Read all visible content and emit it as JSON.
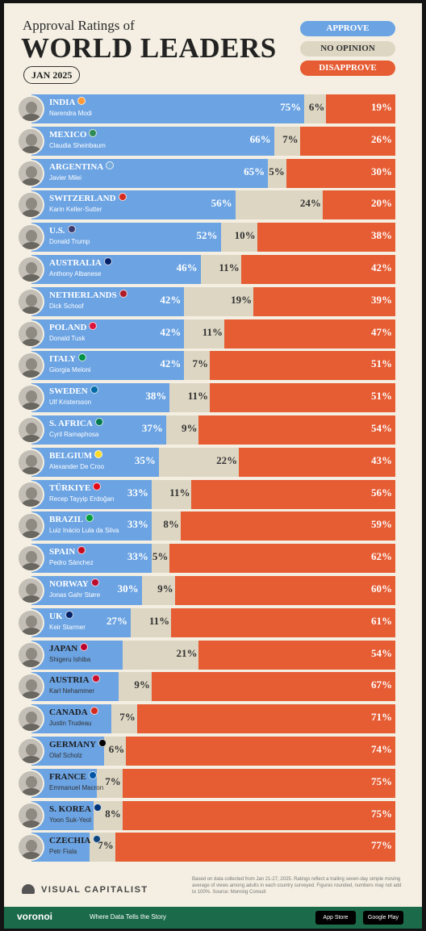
{
  "header": {
    "subtitle": "Approval Ratings of",
    "title": "WORLD LEADERS",
    "date": "JAN 2025"
  },
  "legend": {
    "approve": "APPROVE",
    "no_opinion": "NO OPINION",
    "disapprove": "DISAPPROVE"
  },
  "colors": {
    "approve": "#6ba3e3",
    "no_opinion": "#ddd6c3",
    "disapprove": "#e65c33",
    "background": "#f4efe2",
    "footer": "#1b6a4a"
  },
  "chart_data": {
    "type": "bar",
    "stacked": true,
    "orientation": "horizontal",
    "title": "WORLD LEADERS",
    "subtitle": "Approval Ratings of",
    "categories": [
      "INDIA",
      "MEXICO",
      "ARGENTINA",
      "SWITZERLAND",
      "U.S.",
      "AUSTRALIA",
      "NETHERLANDS",
      "POLAND",
      "ITALY",
      "SWEDEN",
      "S. AFRICA",
      "BELGIUM",
      "TÜRKIYE",
      "BRAZIL",
      "SPAIN",
      "NORWAY",
      "UK",
      "JAPAN",
      "AUSTRIA",
      "CANADA",
      "GERMANY",
      "FRANCE",
      "S. KOREA",
      "CZECHIA"
    ],
    "leaders": [
      "Narendra Modi",
      "Claudia Sheinbaum",
      "Javier Milei",
      "Karin Keller-Sutter",
      "Donald Trump",
      "Anthony Albanese",
      "Dick Schoof",
      "Donald Tusk",
      "Giorgia Meloni",
      "Ulf Kristersson",
      "Cyril Ramaphosa",
      "Alexander De Croo",
      "Recep Tayyip Erdoğan",
      "Luiz Inácio Lula da Silva",
      "Pedro Sánchez",
      "Jonas Gahr Støre",
      "Keir Starmer",
      "Shigeru Ishiba",
      "Karl Nehammer",
      "Justin Trudeau",
      "Olaf Scholz",
      "Emmanuel Macron",
      "Yoon Suk-Yeol",
      "Petr Fiala"
    ],
    "flag_colors": [
      "#ff9933",
      "#2e8b57",
      "#75aadb",
      "#d52b1e",
      "#3c3b6e",
      "#012169",
      "#ae1c28",
      "#dc143c",
      "#009246",
      "#006aa7",
      "#007a4d",
      "#fdda24",
      "#e30a17",
      "#009c3b",
      "#c60b1e",
      "#ba0c2f",
      "#012169",
      "#bc002d",
      "#c8102e",
      "#d52b1e",
      "#000000",
      "#0055a4",
      "#003478",
      "#11457e"
    ],
    "series": [
      {
        "name": "APPROVE",
        "values": [
          75,
          66,
          65,
          56,
          52,
          46,
          42,
          42,
          42,
          38,
          37,
          35,
          33,
          33,
          33,
          30,
          27,
          25,
          24,
          22,
          20,
          18,
          17,
          16
        ]
      },
      {
        "name": "NO OPINION",
        "values": [
          6,
          7,
          5,
          24,
          10,
          11,
          19,
          11,
          7,
          11,
          9,
          22,
          11,
          8,
          5,
          9,
          11,
          21,
          9,
          7,
          6,
          7,
          8,
          7
        ]
      },
      {
        "name": "DISAPPROVE",
        "values": [
          19,
          26,
          30,
          20,
          38,
          42,
          39,
          47,
          51,
          51,
          54,
          43,
          56,
          59,
          62,
          60,
          61,
          54,
          67,
          71,
          74,
          75,
          75,
          77
        ]
      }
    ],
    "value_labels": {
      "approve": [
        "75%",
        "66%",
        "65%",
        "56%",
        "52%",
        "46%",
        "42%",
        "42%",
        "42%",
        "38%",
        "37%",
        "35%",
        "33%",
        "33%",
        "33%",
        "30%",
        "27%",
        "25%",
        "24%",
        "22%",
        "20%",
        "18%",
        "17%",
        "16%"
      ],
      "no_opinion": [
        "6%",
        "7%",
        "5%",
        "24%",
        "10%",
        "11%",
        "19%",
        "11%",
        "7%",
        "11%",
        "9%",
        "22%",
        "11%",
        "8%",
        "5%",
        "9%",
        "11%",
        "21%",
        "9%",
        "7%",
        "6%",
        "7%",
        "8%",
        "7%"
      ],
      "disapprove": [
        "19%",
        "26%",
        "30%",
        "20%",
        "38%",
        "42%",
        "39%",
        "47%",
        "51%",
        "51%",
        "54%",
        "43%",
        "56%",
        "59%",
        "62%",
        "60%",
        "61%",
        "54%",
        "67%",
        "71%",
        "74%",
        "75%",
        "75%",
        "77%"
      ]
    },
    "xlim": [
      0,
      100
    ]
  },
  "footnote": "Based on data collected from Jan 21-27, 2025. Ratings reflect a trailing seven-day simple moving average of views among adults in each country surveyed. Figures rounded, numbers may not add to 100%. Source: Morning Consult",
  "branding": {
    "visual_capitalist": "VISUAL CAPITALIST",
    "voronoi": "voronoi",
    "tagline": "Where Data Tells the Story",
    "app_store": "App Store",
    "google_play": "Google Play"
  }
}
